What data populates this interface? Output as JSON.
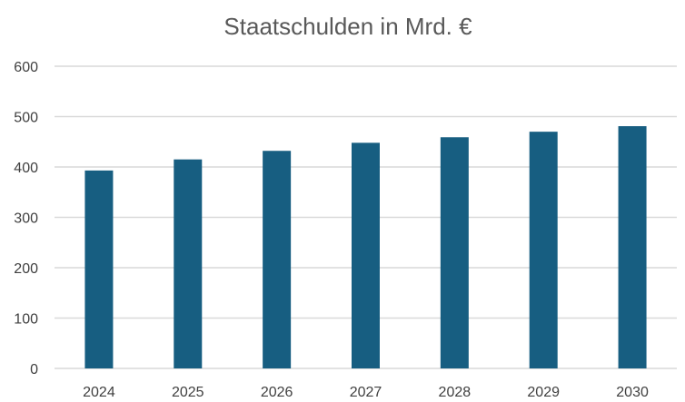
{
  "chart_data": {
    "type": "bar",
    "title": "Staatschulden in Mrd. €",
    "xlabel": "",
    "ylabel": "",
    "categories": [
      "2024",
      "2025",
      "2026",
      "2027",
      "2028",
      "2029",
      "2030"
    ],
    "series": [
      {
        "values": [
          393,
          415,
          432,
          448,
          459,
          470,
          481
        ]
      }
    ],
    "ylim": [
      0,
      600
    ],
    "yticks": [
      "0",
      "100",
      "200",
      "300",
      "400",
      "500",
      "600"
    ],
    "grid": true,
    "legend": "none",
    "colors": {
      "bar": "#175e81"
    }
  }
}
